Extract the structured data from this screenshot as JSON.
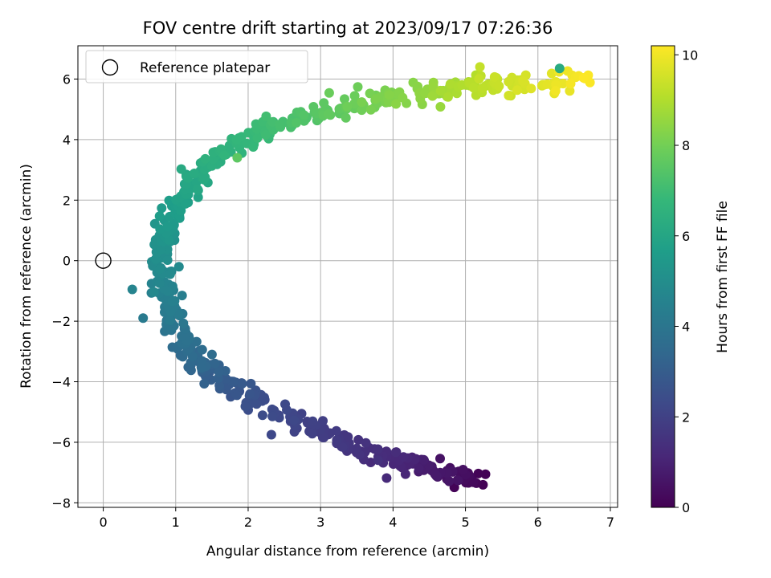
{
  "chart_data": {
    "type": "scatter",
    "title": "FOV centre drift starting at 2023/09/17 07:26:36",
    "xlabel": "Angular distance from reference (arcmin)",
    "ylabel": "Rotation from reference (arcmin)",
    "colorbar_label": "Hours from first FF file",
    "xlim": [
      -0.35,
      7.1
    ],
    "ylim": [
      -8.15,
      7.1
    ],
    "x_ticks": [
      0,
      1,
      2,
      3,
      4,
      5,
      6,
      7
    ],
    "y_ticks": [
      -8,
      -6,
      -4,
      -2,
      0,
      2,
      4,
      6
    ],
    "colorbar_range": [
      0,
      10.2
    ],
    "colorbar_ticks": [
      0,
      2,
      4,
      6,
      8,
      10
    ],
    "colormap": "viridis",
    "grid": true,
    "legend_placement": "top-left",
    "legend": [
      {
        "label": "Reference platepar",
        "marker": "open-circle"
      }
    ],
    "reference_point": {
      "x": 0,
      "y": 0
    },
    "drift_path": [
      {
        "hours": 0.0,
        "x": 5.2,
        "y": -7.3
      },
      {
        "hours": 0.5,
        "x": 4.8,
        "y": -7.05
      },
      {
        "hours": 1.0,
        "x": 4.25,
        "y": -6.7
      },
      {
        "hours": 1.5,
        "x": 3.5,
        "y": -6.2
      },
      {
        "hours": 2.0,
        "x": 2.8,
        "y": -5.4
      },
      {
        "hours": 2.5,
        "x": 2.1,
        "y": -4.65
      },
      {
        "hours": 3.0,
        "x": 1.6,
        "y": -3.9
      },
      {
        "hours": 3.5,
        "x": 1.25,
        "y": -3.1
      },
      {
        "hours": 4.0,
        "x": 0.95,
        "y": -2.1
      },
      {
        "hours": 4.5,
        "x": 0.85,
        "y": -1.0
      },
      {
        "hours": 5.0,
        "x": 0.8,
        "y": 0.1
      },
      {
        "hours": 5.5,
        "x": 0.92,
        "y": 1.3
      },
      {
        "hours": 6.0,
        "x": 1.2,
        "y": 2.5
      },
      {
        "hours": 6.5,
        "x": 1.6,
        "y": 3.55
      },
      {
        "hours": 7.0,
        "x": 2.3,
        "y": 4.4
      },
      {
        "hours": 7.5,
        "x": 3.0,
        "y": 4.9
      },
      {
        "hours": 8.0,
        "x": 3.7,
        "y": 5.3
      },
      {
        "hours": 8.5,
        "x": 4.4,
        "y": 5.55
      },
      {
        "hours": 9.0,
        "x": 5.0,
        "y": 5.75
      },
      {
        "hours": 9.5,
        "x": 5.7,
        "y": 5.85
      },
      {
        "hours": 10.2,
        "x": 6.7,
        "y": 5.9
      }
    ],
    "points_per_segment": 32,
    "scatter_x": 0.09,
    "scatter_y": 0.17,
    "outliers": [
      {
        "hours": 4.6,
        "x": 0.4,
        "y": -0.95
      },
      {
        "hours": 4.2,
        "x": 0.55,
        "y": -1.9
      },
      {
        "hours": 3.6,
        "x": 1.5,
        "y": -3.1
      },
      {
        "hours": 6.2,
        "x": 6.3,
        "y": 6.35
      },
      {
        "hours": 9.3,
        "x": 5.2,
        "y": 6.4
      },
      {
        "hours": 7.6,
        "x": 1.85,
        "y": 3.4
      }
    ]
  }
}
